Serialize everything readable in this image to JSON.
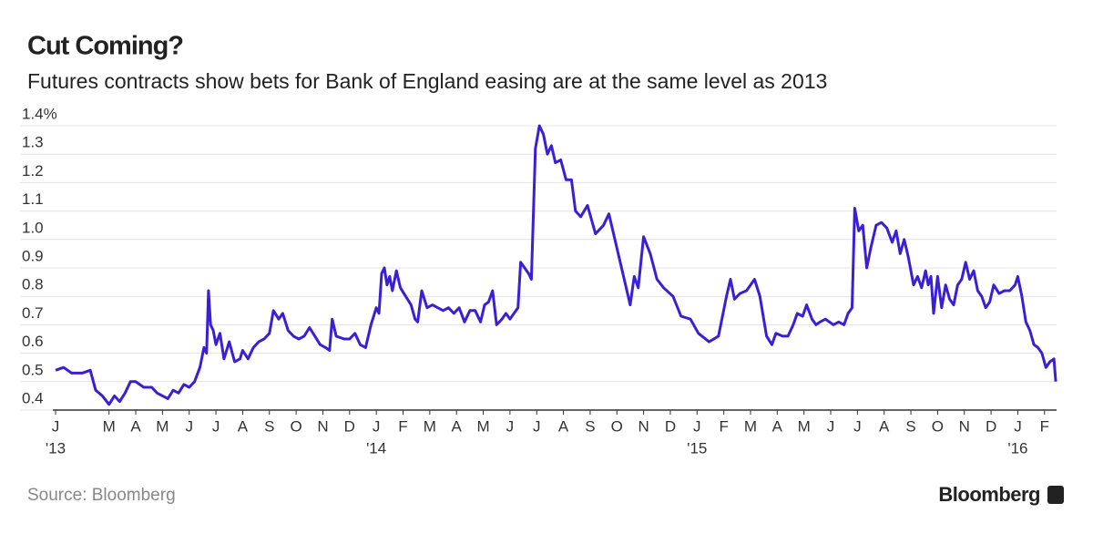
{
  "chart_data": {
    "type": "line",
    "title": "Cut Coming?",
    "subtitle": "Futures contracts show bets for Bank of England easing are at the same level as 2013",
    "source": "Source: Bloomberg",
    "brand": "Bloomberg",
    "color": "#3b1fd4",
    "grid": true,
    "xlim": [
      0,
      37.45
    ],
    "ylim": [
      0.4,
      1.4
    ],
    "yticks": [
      0.4,
      0.5,
      0.6,
      0.7,
      0.8,
      0.9,
      {
        "value": 1,
        "label": "1.0"
      },
      1.1,
      1.2,
      1.3,
      {
        "value": 1.4,
        "label": "1.4%"
      }
    ],
    "xticks": [
      {
        "value": 0,
        "label": "J"
      },
      {
        "value": 2,
        "label": "M"
      },
      {
        "value": 3,
        "label": "A"
      },
      {
        "value": 4,
        "label": "M"
      },
      {
        "value": 5,
        "label": "J"
      },
      {
        "value": 6,
        "label": "J"
      },
      {
        "value": 7,
        "label": "A"
      },
      {
        "value": 8,
        "label": "S"
      },
      {
        "value": 9,
        "label": "O"
      },
      {
        "value": 10,
        "label": "N"
      },
      {
        "value": 11,
        "label": "D"
      },
      {
        "value": 12,
        "label": "J"
      },
      {
        "value": 13,
        "label": "F"
      },
      {
        "value": 14,
        "label": "M"
      },
      {
        "value": 15,
        "label": "A"
      },
      {
        "value": 16,
        "label": "M"
      },
      {
        "value": 17,
        "label": "J"
      },
      {
        "value": 18,
        "label": "J"
      },
      {
        "value": 19,
        "label": "A"
      },
      {
        "value": 20,
        "label": "S"
      },
      {
        "value": 21,
        "label": "O"
      },
      {
        "value": 22,
        "label": "N"
      },
      {
        "value": 23,
        "label": "D"
      },
      {
        "value": 24,
        "label": "J"
      },
      {
        "value": 25,
        "label": "F"
      },
      {
        "value": 26,
        "label": "M"
      },
      {
        "value": 27,
        "label": "A"
      },
      {
        "value": 28,
        "label": "M"
      },
      {
        "value": 29,
        "label": "J"
      },
      {
        "value": 30,
        "label": "J"
      },
      {
        "value": 31,
        "label": "A"
      },
      {
        "value": 32,
        "label": "S"
      },
      {
        "value": 33,
        "label": "O"
      },
      {
        "value": 34,
        "label": "N"
      },
      {
        "value": 35,
        "label": "D"
      },
      {
        "value": 36,
        "label": "J"
      },
      {
        "value": 37,
        "label": "F"
      }
    ],
    "x_year_labels": [
      {
        "value": 0,
        "label": "'13"
      },
      {
        "value": 12,
        "label": "'14"
      },
      {
        "value": 24,
        "label": "'15"
      },
      {
        "value": 36,
        "label": "'16"
      }
    ],
    "x": [
      0,
      0.3,
      0.6,
      1,
      1.3,
      1.5,
      1.75,
      2,
      2.2,
      2.4,
      2.6,
      2.8,
      3,
      3.3,
      3.6,
      3.8,
      4,
      4.2,
      4.4,
      4.6,
      4.8,
      5,
      5.2,
      5.4,
      5.55,
      5.65,
      5.72,
      5.8,
      5.9,
      6,
      6.15,
      6.3,
      6.5,
      6.7,
      6.9,
      7,
      7.2,
      7.4,
      7.6,
      7.8,
      8,
      8.15,
      8.35,
      8.5,
      8.7,
      8.9,
      9.1,
      9.3,
      9.5,
      9.7,
      9.9,
      10.1,
      10.25,
      10.35,
      10.5,
      10.8,
      11,
      11.2,
      11.4,
      11.6,
      11.8,
      12,
      12.1,
      12.2,
      12.3,
      12.4,
      12.5,
      12.6,
      12.75,
      12.9,
      13.1,
      13.3,
      13.45,
      13.55,
      13.7,
      13.9,
      14.1,
      14.3,
      14.5,
      14.7,
      14.9,
      15.1,
      15.3,
      15.5,
      15.7,
      15.9,
      16.05,
      16.2,
      16.35,
      16.5,
      16.7,
      16.85,
      17,
      17.15,
      17.3,
      17.4,
      17.55,
      17.7,
      17.8,
      17.95,
      18.1,
      18.25,
      18.4,
      18.55,
      18.7,
      18.9,
      19.1,
      19.3,
      19.45,
      19.65,
      19.9,
      20.2,
      20.5,
      20.7,
      21,
      21.25,
      21.5,
      21.65,
      21.8,
      22,
      22.25,
      22.5,
      22.75,
      23.1,
      23.4,
      23.75,
      24.05,
      24.45,
      24.8,
      25.1,
      25.25,
      25.4,
      25.6,
      25.85,
      26.15,
      26.35,
      26.6,
      26.8,
      26.95,
      27.2,
      27.4,
      27.6,
      27.75,
      27.95,
      28.1,
      28.3,
      28.45,
      28.6,
      28.8,
      29.1,
      29.3,
      29.5,
      29.65,
      29.8,
      29.9,
      30.05,
      30.2,
      30.35,
      30.5,
      30.7,
      30.9,
      31.1,
      31.3,
      31.45,
      31.6,
      31.75,
      31.9,
      32.1,
      32.25,
      32.4,
      32.55,
      32.65,
      32.75,
      32.85,
      33,
      33.15,
      33.3,
      33.45,
      33.6,
      33.75,
      33.9,
      34.05,
      34.2,
      34.35,
      34.5,
      34.65,
      34.8,
      34.95,
      35.1,
      35.3,
      35.5,
      35.7,
      35.9,
      36,
      36.15,
      36.3,
      36.45,
      36.6,
      36.75,
      36.9,
      37.05,
      37.2,
      37.35,
      37.42
    ],
    "values": [
      0.54,
      0.55,
      0.53,
      0.53,
      0.54,
      0.47,
      0.45,
      0.42,
      0.45,
      0.43,
      0.46,
      0.5,
      0.5,
      0.48,
      0.48,
      0.46,
      0.45,
      0.44,
      0.47,
      0.46,
      0.49,
      0.48,
      0.5,
      0.55,
      0.62,
      0.6,
      0.82,
      0.7,
      0.68,
      0.63,
      0.67,
      0.58,
      0.64,
      0.57,
      0.58,
      0.61,
      0.58,
      0.62,
      0.64,
      0.65,
      0.67,
      0.75,
      0.72,
      0.74,
      0.68,
      0.66,
      0.65,
      0.66,
      0.69,
      0.66,
      0.63,
      0.62,
      0.61,
      0.72,
      0.66,
      0.65,
      0.65,
      0.67,
      0.63,
      0.62,
      0.7,
      0.76,
      0.74,
      0.88,
      0.9,
      0.84,
      0.87,
      0.82,
      0.89,
      0.83,
      0.8,
      0.77,
      0.72,
      0.71,
      0.82,
      0.76,
      0.77,
      0.76,
      0.75,
      0.76,
      0.74,
      0.76,
      0.71,
      0.75,
      0.75,
      0.71,
      0.77,
      0.78,
      0.82,
      0.7,
      0.72,
      0.74,
      0.72,
      0.74,
      0.76,
      0.92,
      0.9,
      0.88,
      0.86,
      1.32,
      1.4,
      1.37,
      1.3,
      1.33,
      1.27,
      1.28,
      1.21,
      1.21,
      1.1,
      1.08,
      1.12,
      1.02,
      1.05,
      1.09,
      0.97,
      0.87,
      0.77,
      0.87,
      0.83,
      1.01,
      0.95,
      0.86,
      0.83,
      0.8,
      0.73,
      0.72,
      0.67,
      0.64,
      0.66,
      0.8,
      0.86,
      0.79,
      0.81,
      0.82,
      0.86,
      0.8,
      0.66,
      0.63,
      0.67,
      0.66,
      0.66,
      0.7,
      0.74,
      0.73,
      0.77,
      0.72,
      0.7,
      0.71,
      0.72,
      0.7,
      0.71,
      0.7,
      0.74,
      0.76,
      1.11,
      1.03,
      1.05,
      0.9,
      0.97,
      1.05,
      1.06,
      1.04,
      0.99,
      1.03,
      0.95,
      1,
      0.94,
      0.84,
      0.87,
      0.83,
      0.89,
      0.84,
      0.87,
      0.74,
      0.87,
      0.76,
      0.84,
      0.79,
      0.77,
      0.84,
      0.86,
      0.92,
      0.86,
      0.89,
      0.82,
      0.8,
      0.76,
      0.78,
      0.84,
      0.81,
      0.82,
      0.82,
      0.84,
      0.87,
      0.8,
      0.71,
      0.68,
      0.63,
      0.62,
      0.6,
      0.55,
      0.57,
      0.58,
      0.5
    ]
  }
}
